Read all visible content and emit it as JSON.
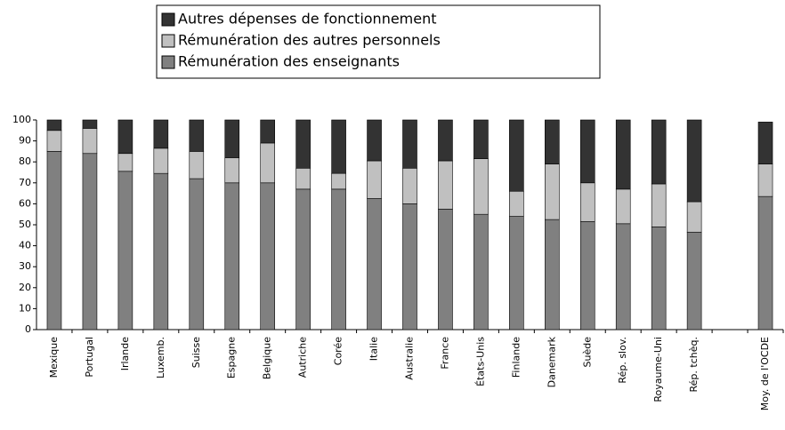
{
  "chart_data": {
    "type": "stacked_bar",
    "categories": [
      "Mexique",
      "Portugal",
      "Irlande",
      "Luxemb.",
      "Suisse",
      "Espagne",
      "Belgique",
      "Autriche",
      "Corée",
      "Italie",
      "Australie",
      "France",
      "États-Unis",
      "Finlande",
      "Danemark",
      "Suède",
      "Rép. slov.",
      "Royaume-Uni",
      "Rép. tchèq.",
      null,
      "Moy. de l'OCDE"
    ],
    "series": [
      {
        "name": "Rémunération des enseignants",
        "color": "#808080",
        "values": [
          85,
          84,
          75.5,
          74.5,
          72,
          70,
          70,
          67,
          67,
          62.5,
          60,
          57.5,
          55,
          54,
          52.5,
          51.5,
          50.5,
          49,
          46.5,
          null,
          63.5
        ]
      },
      {
        "name": "Rémunération des autres personnels",
        "color": "#c0c0c0",
        "values": [
          10,
          12,
          8.5,
          12,
          13,
          12,
          19,
          10,
          7.5,
          18,
          17,
          23,
          26.5,
          12,
          26.5,
          18.5,
          16.5,
          20.5,
          14.5,
          null,
          15.5
        ]
      },
      {
        "name": "Autres dépenses de fonctionnement",
        "color": "#333333",
        "values": [
          5,
          4,
          16,
          13.5,
          15,
          18,
          11,
          23,
          25.5,
          19.5,
          23,
          19.5,
          18.5,
          34,
          21,
          30,
          33,
          30.5,
          39,
          null,
          20
        ]
      }
    ],
    "ylim": [
      0,
      100
    ],
    "yticks": [
      0,
      10,
      20,
      30,
      40,
      50,
      60,
      70,
      80,
      90,
      100
    ],
    "grid": false
  }
}
